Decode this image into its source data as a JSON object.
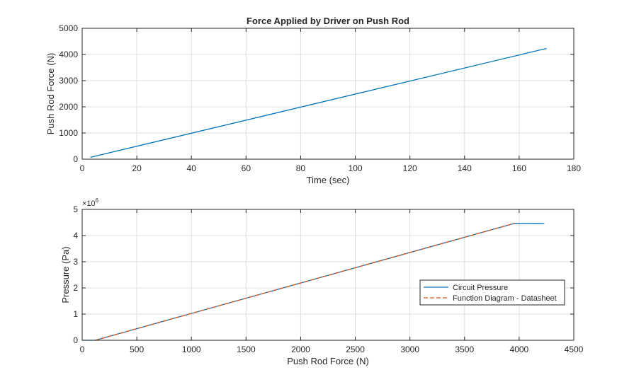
{
  "chart_data": [
    {
      "type": "line",
      "title": "Force Applied by Driver on Push Rod",
      "xlabel": "Time (sec)",
      "ylabel": "Push Rod Force (N)",
      "xlim": [
        0,
        180
      ],
      "ylim": [
        0,
        5000
      ],
      "xticks": [
        "0",
        "20",
        "40",
        "60",
        "80",
        "100",
        "120",
        "140",
        "160",
        "180"
      ],
      "yticks": [
        "0",
        "1000",
        "2000",
        "3000",
        "4000",
        "5000"
      ],
      "grid": true,
      "series": [
        {
          "color": "#0072BD",
          "style": "solid",
          "x": [
            3,
            170
          ],
          "y": [
            70,
            4230
          ]
        }
      ]
    },
    {
      "type": "line",
      "title": "",
      "xlabel": "Push Rod Force (N)",
      "ylabel": "Pressure (Pa)",
      "y_exponent_base": "×10",
      "y_exponent": "6",
      "xlim": [
        0,
        4500
      ],
      "ylim": [
        0,
        5
      ],
      "xticks": [
        "0",
        "500",
        "1000",
        "1500",
        "2000",
        "2500",
        "3000",
        "3500",
        "4000",
        "4500"
      ],
      "yticks": [
        "0",
        "1",
        "2",
        "3",
        "4",
        "5"
      ],
      "grid": true,
      "legend_position": "right",
      "series": [
        {
          "name": "Circuit Pressure",
          "color": "#0072BD",
          "style": "solid",
          "x": [
            0,
            120,
            3960,
            4230
          ],
          "y": [
            0,
            0,
            4.47,
            4.46
          ]
        },
        {
          "name": "Function Diagram - Datasheet",
          "color": "#D95319",
          "style": "dashed",
          "x": [
            120,
            3960
          ],
          "y": [
            0,
            4.47
          ]
        }
      ]
    }
  ]
}
